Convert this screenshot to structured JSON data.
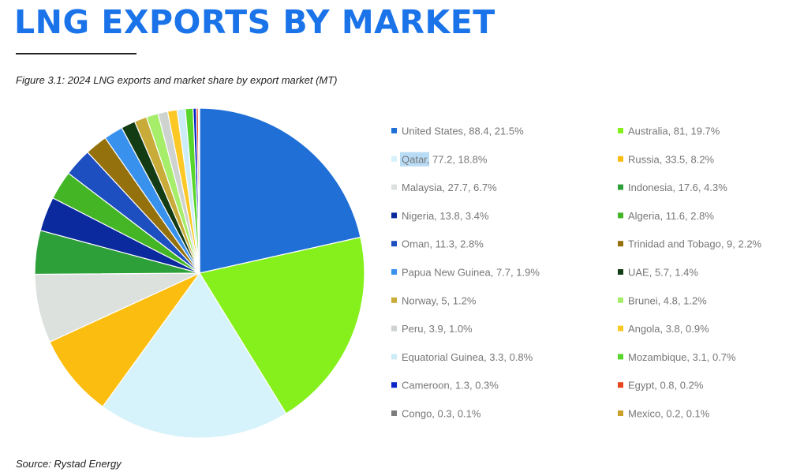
{
  "header": {
    "title": "LNG EXPORTS BY MARKET",
    "caption": "Figure 3.1: 2024 LNG exports and market share by export market (MT)"
  },
  "footer": {
    "source": "Source: Rystad Energy"
  },
  "chart_data": {
    "type": "pie",
    "title": "",
    "legend_position": "right",
    "highlighted_text": "Qatar",
    "slices": [
      {
        "label": "United States",
        "value": 88.4,
        "share": "21.5%",
        "color": "#1f6fd6"
      },
      {
        "label": "Australia",
        "value": 81,
        "share": "19.7%",
        "color": "#86f01c"
      },
      {
        "label": "Qatar",
        "value": 77.2,
        "share": "18.8%",
        "color": "#d6f2fb"
      },
      {
        "label": "Russia",
        "value": 33.5,
        "share": "8.2%",
        "color": "#fbbd0f"
      },
      {
        "label": "Malaysia",
        "value": 27.7,
        "share": "6.7%",
        "color": "#dde1de"
      },
      {
        "label": "Indonesia",
        "value": 17.6,
        "share": "4.3%",
        "color": "#2ea03a"
      },
      {
        "label": "Nigeria",
        "value": 13.8,
        "share": "3.4%",
        "color": "#0a2a9e"
      },
      {
        "label": "Algeria",
        "value": 11.6,
        "share": "2.8%",
        "color": "#44b626"
      },
      {
        "label": "Oman",
        "value": 11.3,
        "share": "2.8%",
        "color": "#1d4fc0"
      },
      {
        "label": "Trinidad and Tobago",
        "value": 9,
        "share": "2.2%",
        "color": "#94710d"
      },
      {
        "label": "Papua New Guinea",
        "value": 7.7,
        "share": "1.9%",
        "color": "#3991ee"
      },
      {
        "label": "UAE",
        "value": 5.7,
        "share": "1.4%",
        "color": "#143c14"
      },
      {
        "label": "Norway",
        "value": 5,
        "share": "1.2%",
        "color": "#c8ab38"
      },
      {
        "label": "Brunei",
        "value": 4.8,
        "share": "1.2%",
        "color": "#a6ee6a"
      },
      {
        "label": "Peru",
        "value": 3.9,
        "share": "1.0%",
        "color": "#cfd3d0"
      },
      {
        "label": "Angola",
        "value": 3.8,
        "share": "0.9%",
        "color": "#fcc825"
      },
      {
        "label": "Equatorial Guinea",
        "value": 3.3,
        "share": "0.8%",
        "color": "#ccecf8"
      },
      {
        "label": "Mozambique",
        "value": 3.1,
        "share": "0.7%",
        "color": "#58d62c"
      },
      {
        "label": "Cameroon",
        "value": 1.3,
        "share": "0.3%",
        "color": "#0b25c8"
      },
      {
        "label": "Egypt",
        "value": 0.8,
        "share": "0.2%",
        "color": "#e6461c"
      },
      {
        "label": "Congo",
        "value": 0.3,
        "share": "0.1%",
        "color": "#7c7c7c"
      },
      {
        "label": "Mexico",
        "value": 0.2,
        "share": "0.1%",
        "color": "#c9a02a"
      }
    ]
  }
}
